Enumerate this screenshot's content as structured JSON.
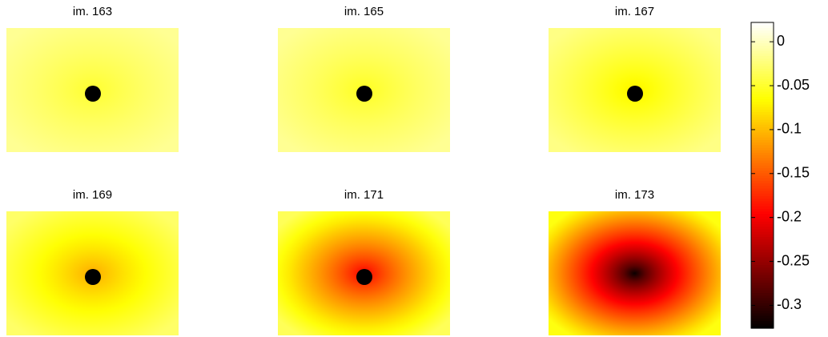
{
  "chart_data": {
    "type": "heatmap",
    "colormap": "hot",
    "clim": [
      -0.326,
      0.022
    ],
    "colorbar_ticks": [
      0,
      -0.05,
      -0.1,
      -0.15,
      -0.2,
      -0.25,
      -0.3
    ],
    "panels": [
      {
        "title": "im. 163",
        "center": -0.05,
        "edge": -0.015,
        "marker": true
      },
      {
        "title": "im. 165",
        "center": -0.055,
        "edge": -0.015,
        "marker": true
      },
      {
        "title": "im. 167",
        "center": -0.075,
        "edge": -0.02,
        "marker": true
      },
      {
        "title": "im. 169",
        "center": -0.11,
        "edge": -0.03,
        "marker": true
      },
      {
        "title": "im. 171",
        "center": -0.2,
        "edge": -0.035,
        "marker": true
      },
      {
        "title": "im. 173",
        "center": -0.32,
        "edge": -0.06,
        "marker": false
      }
    ]
  }
}
